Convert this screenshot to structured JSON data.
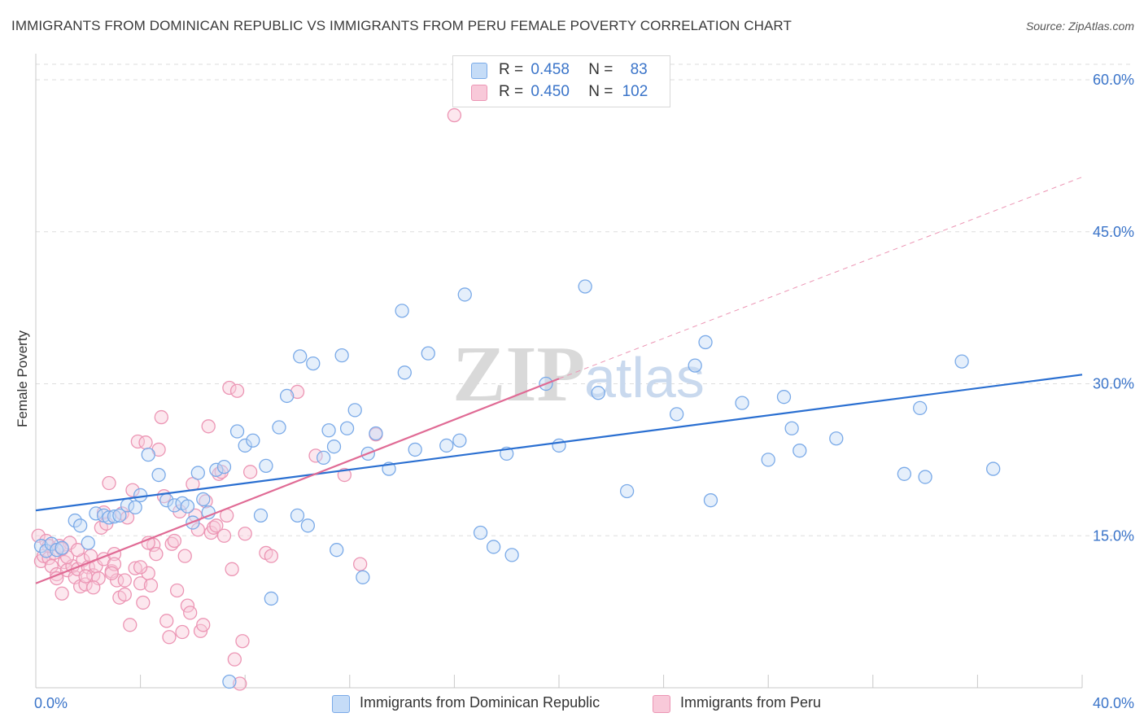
{
  "title": "IMMIGRANTS FROM DOMINICAN REPUBLIC VS IMMIGRANTS FROM PERU FEMALE POVERTY CORRELATION CHART",
  "source": "Source: ZipAtlas.com",
  "watermark": {
    "zip": "ZIP",
    "atlas": "atlas"
  },
  "legend_top": {
    "series1": {
      "r_label": "R =",
      "r_value": "0.458",
      "n_label": "N =",
      "n_value": "83"
    },
    "series2": {
      "r_label": "R =",
      "r_value": "0.450",
      "n_label": "N =",
      "n_value": "102"
    }
  },
  "colors": {
    "blue": "#7aaae8",
    "blue_fill": "#c5dcf7",
    "blue_line": "#2a6fd1",
    "pink": "#ec95b4",
    "pink_fill": "#f8c9d9",
    "pink_line": "#e06b95",
    "tick_text": "#3a74c9",
    "grid": "#dddddd"
  },
  "chart_data": {
    "type": "scatter",
    "title": "IMMIGRANTS FROM DOMINICAN REPUBLIC VS IMMIGRANTS FROM PERU FEMALE POVERTY CORRELATION CHART",
    "xlabel": "",
    "ylabel": "Female Poverty",
    "xlim": [
      0,
      40
    ],
    "ylim": [
      0,
      60
    ],
    "x_tick_labels": [
      "0.0%",
      "40.0%"
    ],
    "y_tick_values": [
      15,
      30,
      45,
      60
    ],
    "y_tick_labels": [
      "15.0%",
      "30.0%",
      "45.0%",
      "60.0%"
    ],
    "legend_position": "bottom-center",
    "series": [
      {
        "name": "Immigrants from Dominican Republic",
        "color": "blue",
        "r": 0.458,
        "n": 83,
        "trend": {
          "x0": 0,
          "y0": 17.5,
          "x1": 40,
          "y1": 30.9
        },
        "points": [
          [
            0.2,
            14.0
          ],
          [
            0.4,
            13.5
          ],
          [
            0.6,
            14.2
          ],
          [
            0.8,
            13.6
          ],
          [
            1.0,
            13.8
          ],
          [
            1.5,
            16.5
          ],
          [
            1.7,
            16.0
          ],
          [
            2.0,
            14.3
          ],
          [
            2.3,
            17.2
          ],
          [
            2.6,
            17.0
          ],
          [
            2.8,
            16.8
          ],
          [
            3.0,
            16.9
          ],
          [
            3.2,
            17.0
          ],
          [
            3.5,
            18.0
          ],
          [
            3.8,
            17.8
          ],
          [
            4.0,
            19.0
          ],
          [
            4.3,
            23.0
          ],
          [
            4.7,
            21.0
          ],
          [
            5.0,
            18.5
          ],
          [
            5.3,
            18.0
          ],
          [
            5.6,
            18.2
          ],
          [
            5.8,
            17.9
          ],
          [
            6.0,
            16.3
          ],
          [
            6.2,
            21.2
          ],
          [
            6.4,
            18.6
          ],
          [
            6.6,
            17.3
          ],
          [
            6.9,
            21.5
          ],
          [
            7.2,
            21.8
          ],
          [
            7.7,
            25.3
          ],
          [
            8.0,
            23.9
          ],
          [
            8.3,
            24.4
          ],
          [
            8.6,
            17.0
          ],
          [
            8.8,
            21.9
          ],
          [
            9.3,
            25.7
          ],
          [
            9.6,
            28.8
          ],
          [
            10.0,
            17.0
          ],
          [
            10.1,
            32.7
          ],
          [
            10.4,
            16.0
          ],
          [
            10.6,
            32.0
          ],
          [
            11.0,
            22.7
          ],
          [
            11.2,
            25.4
          ],
          [
            11.4,
            23.8
          ],
          [
            11.5,
            13.6
          ],
          [
            11.7,
            32.8
          ],
          [
            11.9,
            25.6
          ],
          [
            12.2,
            27.4
          ],
          [
            12.5,
            10.9
          ],
          [
            12.7,
            23.1
          ],
          [
            13.0,
            25.1
          ],
          [
            13.5,
            21.6
          ],
          [
            14.0,
            37.2
          ],
          [
            14.1,
            31.1
          ],
          [
            14.5,
            23.5
          ],
          [
            15.0,
            33.0
          ],
          [
            15.7,
            23.9
          ],
          [
            16.2,
            24.4
          ],
          [
            16.4,
            38.8
          ],
          [
            17.0,
            15.3
          ],
          [
            17.5,
            13.9
          ],
          [
            18.0,
            23.1
          ],
          [
            18.2,
            13.1
          ],
          [
            19.5,
            30.0
          ],
          [
            20.0,
            23.9
          ],
          [
            21.0,
            39.6
          ],
          [
            21.5,
            29.1
          ],
          [
            22.6,
            19.4
          ],
          [
            24.5,
            27.0
          ],
          [
            25.2,
            31.8
          ],
          [
            25.6,
            34.1
          ],
          [
            25.8,
            18.5
          ],
          [
            27.0,
            28.1
          ],
          [
            28.0,
            22.5
          ],
          [
            28.6,
            28.7
          ],
          [
            28.9,
            25.6
          ],
          [
            29.2,
            23.4
          ],
          [
            30.6,
            24.6
          ],
          [
            33.2,
            21.1
          ],
          [
            33.8,
            27.6
          ],
          [
            34.0,
            20.8
          ],
          [
            35.4,
            32.2
          ],
          [
            36.6,
            21.6
          ],
          [
            7.4,
            0.6
          ],
          [
            9.0,
            8.8
          ]
        ]
      },
      {
        "name": "Immigrants from Peru",
        "color": "pink",
        "r": 0.45,
        "n": 102,
        "trend": {
          "x0": 0,
          "y0": 10.3,
          "x1": 20,
          "y1": 30.5,
          "dash_x1": 40,
          "dash_y1": 50.4
        },
        "points": [
          [
            0.1,
            15.0
          ],
          [
            0.2,
            12.5
          ],
          [
            0.3,
            13.0
          ],
          [
            0.4,
            14.5
          ],
          [
            0.5,
            12.8
          ],
          [
            0.6,
            12.0
          ],
          [
            0.7,
            13.3
          ],
          [
            0.8,
            11.2
          ],
          [
            0.9,
            14.0
          ],
          [
            1.0,
            9.3
          ],
          [
            1.1,
            12.4
          ],
          [
            1.2,
            11.6
          ],
          [
            1.3,
            14.3
          ],
          [
            1.4,
            12.0
          ],
          [
            1.5,
            10.9
          ],
          [
            1.6,
            11.7
          ],
          [
            1.7,
            10.0
          ],
          [
            1.8,
            12.6
          ],
          [
            1.9,
            10.2
          ],
          [
            2.0,
            11.9
          ],
          [
            2.1,
            13.0
          ],
          [
            2.2,
            11.1
          ],
          [
            2.3,
            12.0
          ],
          [
            2.4,
            10.8
          ],
          [
            2.5,
            15.8
          ],
          [
            2.6,
            12.7
          ],
          [
            2.7,
            16.2
          ],
          [
            2.8,
            20.2
          ],
          [
            2.9,
            11.5
          ],
          [
            3.0,
            13.2
          ],
          [
            3.1,
            10.6
          ],
          [
            3.2,
            8.9
          ],
          [
            3.3,
            17.2
          ],
          [
            3.4,
            9.2
          ],
          [
            3.5,
            16.8
          ],
          [
            3.6,
            6.2
          ],
          [
            3.7,
            19.5
          ],
          [
            3.8,
            11.8
          ],
          [
            3.9,
            24.3
          ],
          [
            4.0,
            10.3
          ],
          [
            4.1,
            8.4
          ],
          [
            4.2,
            24.2
          ],
          [
            4.3,
            11.3
          ],
          [
            4.4,
            10.1
          ],
          [
            4.5,
            14.1
          ],
          [
            4.6,
            13.2
          ],
          [
            4.7,
            23.5
          ],
          [
            4.8,
            26.7
          ],
          [
            4.9,
            18.9
          ],
          [
            5.0,
            6.6
          ],
          [
            5.1,
            5.0
          ],
          [
            5.2,
            14.2
          ],
          [
            5.3,
            14.5
          ],
          [
            5.4,
            9.6
          ],
          [
            5.5,
            17.4
          ],
          [
            5.6,
            5.5
          ],
          [
            5.7,
            13.0
          ],
          [
            5.8,
            8.1
          ],
          [
            5.9,
            7.4
          ],
          [
            6.0,
            20.1
          ],
          [
            6.1,
            17.0
          ],
          [
            6.2,
            15.6
          ],
          [
            6.3,
            5.6
          ],
          [
            6.4,
            6.2
          ],
          [
            6.5,
            18.4
          ],
          [
            6.6,
            25.8
          ],
          [
            6.7,
            15.3
          ],
          [
            6.8,
            15.8
          ],
          [
            6.9,
            16.0
          ],
          [
            7.0,
            21.1
          ],
          [
            7.1,
            21.3
          ],
          [
            7.2,
            15.0
          ],
          [
            7.3,
            17.0
          ],
          [
            7.4,
            29.6
          ],
          [
            7.5,
            11.7
          ],
          [
            7.6,
            2.8
          ],
          [
            7.7,
            29.3
          ],
          [
            7.8,
            0.4
          ],
          [
            7.9,
            4.6
          ],
          [
            8.0,
            15.2
          ],
          [
            8.2,
            21.3
          ],
          [
            8.8,
            13.3
          ],
          [
            9.0,
            13.0
          ],
          [
            10.0,
            29.2
          ],
          [
            10.7,
            22.9
          ],
          [
            11.8,
            21.0
          ],
          [
            12.4,
            12.2
          ],
          [
            13.0,
            25.0
          ],
          [
            16.0,
            56.5
          ],
          [
            2.6,
            17.3
          ],
          [
            3.0,
            12.2
          ],
          [
            4.3,
            14.3
          ],
          [
            1.2,
            12.9
          ],
          [
            0.8,
            10.8
          ],
          [
            1.6,
            13.6
          ],
          [
            2.2,
            9.9
          ],
          [
            3.4,
            10.6
          ],
          [
            4.0,
            11.9
          ],
          [
            0.5,
            14.0
          ],
          [
            1.0,
            13.7
          ],
          [
            1.9,
            11.0
          ],
          [
            2.9,
            11.3
          ]
        ]
      }
    ]
  }
}
